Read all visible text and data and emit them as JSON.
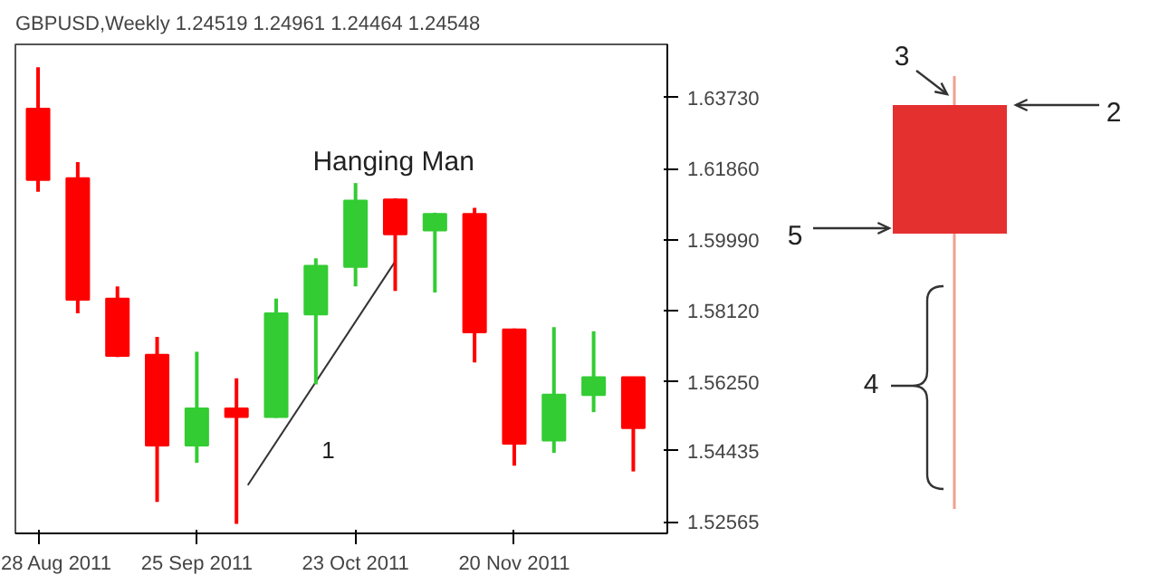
{
  "chart_data": [
    {
      "type": "candlestick",
      "title": "GBPUSD,Weekly  1.24519 1.24961 1.24464 1.24548",
      "x": [
        "2011-08-28",
        "2011-09-04",
        "2011-09-11",
        "2011-09-18",
        "2011-09-25",
        "2011-10-02",
        "2011-10-09",
        "2011-10-16",
        "2011-10-23",
        "2011-10-30",
        "2011-11-06",
        "2011-11-13",
        "2011-11-20",
        "2011-11-27",
        "2011-12-04",
        "2011-12-11"
      ],
      "ohlc": [
        [
          1.6344,
          1.6453,
          1.6125,
          1.6156
        ],
        [
          1.6161,
          1.6203,
          1.5805,
          1.5841
        ],
        [
          1.5844,
          1.5876,
          1.569,
          1.5693
        ],
        [
          1.5696,
          1.5743,
          1.5309,
          1.5457
        ],
        [
          1.5457,
          1.5704,
          1.5412,
          1.5555
        ],
        [
          1.5555,
          1.5634,
          1.5251,
          1.5532
        ],
        [
          1.5532,
          1.5844,
          1.553,
          1.5805
        ],
        [
          1.5802,
          1.595,
          1.5618,
          1.593
        ],
        [
          1.5927,
          1.6148,
          1.5876,
          1.6102
        ],
        [
          1.6105,
          1.6108,
          1.5864,
          1.6013
        ],
        [
          1.6023,
          1.607,
          1.586,
          1.6067
        ],
        [
          1.6067,
          1.6083,
          1.5676,
          1.5755
        ],
        [
          1.5763,
          1.5765,
          1.5404,
          1.5462
        ],
        [
          1.547,
          1.5769,
          1.5438,
          1.5591
        ],
        [
          1.559,
          1.5758,
          1.5545,
          1.5637
        ],
        [
          1.5637,
          1.5638,
          1.5389,
          1.5503
        ]
      ],
      "colors": [
        "#ff0000",
        "#ff0000",
        "#ff0000",
        "#ff0000",
        "#33cc33",
        "#ff0000",
        "#33cc33",
        "#33cc33",
        "#33cc33",
        "#ff0000",
        "#33cc33",
        "#ff0000",
        "#ff0000",
        "#33cc33",
        "#33cc33",
        "#ff0000"
      ],
      "series": [
        {
          "type": "line",
          "x": [
            "2011-10-04",
            "2011-10-30"
          ],
          "values": [
            1.5353,
            1.5942
          ],
          "color": "#333333"
        }
      ],
      "xlim": [
        "2011-08-24",
        "2011-12-17"
      ],
      "xticks": [
        {
          "value": "2011-08-28",
          "label": "28 Aug 2011"
        },
        {
          "value": "2011-09-25",
          "label": "25 Sep 2011"
        },
        {
          "value": "2011-10-23",
          "label": "23 Oct 2011"
        },
        {
          "value": "2011-11-20",
          "label": "20 Nov 2011"
        }
      ],
      "ylim": [
        1.5226,
        1.6513
      ],
      "yticks": [
        1.52565,
        1.54435,
        {
          "value": 1.5625,
          "label": "1.56250"
        },
        {
          "value": 1.5812,
          "label": "1.58120"
        },
        {
          "value": 1.5999,
          "label": "1.59990"
        },
        {
          "value": 1.6186,
          "label": "1.61860"
        },
        {
          "value": 1.6373,
          "label": "1.63730"
        }
      ],
      "annotations": [
        "Hanging Man",
        "1"
      ],
      "grid": false
    },
    {
      "type": "other",
      "annotations": [
        "3",
        "2",
        "5",
        "4"
      ]
    }
  ]
}
